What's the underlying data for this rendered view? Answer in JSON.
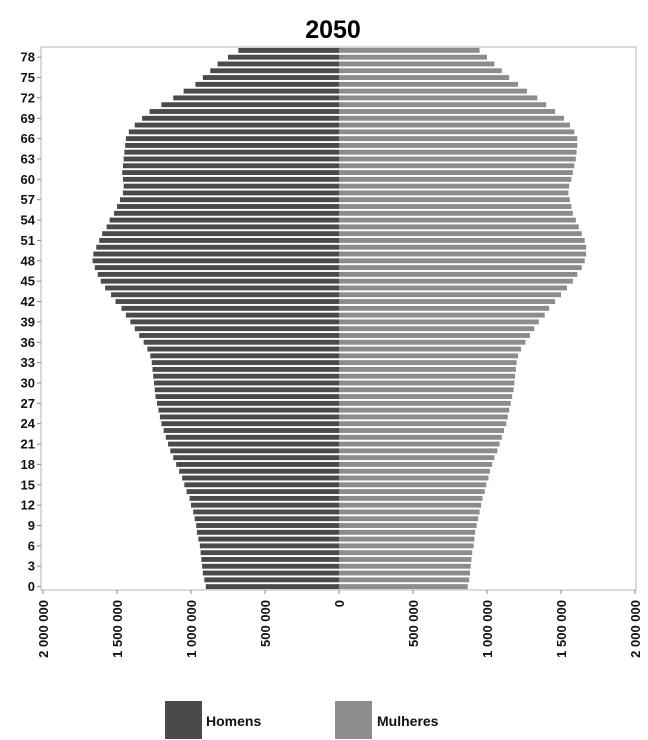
{
  "chart_data": {
    "type": "bar",
    "orientation": "horizontal",
    "title": "2050",
    "legend_position": "bottom",
    "grid": false,
    "xlim": [
      -2000000,
      2000000
    ],
    "x_ticks": [
      {
        "value": -2000000,
        "label": "2 000 000"
      },
      {
        "value": -1500000,
        "label": "1 500 000"
      },
      {
        "value": -1000000,
        "label": "1 000 000"
      },
      {
        "value": -500000,
        "label": "500 000"
      },
      {
        "value": 0,
        "label": "0"
      },
      {
        "value": 500000,
        "label": "500 000"
      },
      {
        "value": 1000000,
        "label": "1 000 000"
      },
      {
        "value": 1500000,
        "label": "1 500 000"
      },
      {
        "value": 2000000,
        "label": "2 000 000"
      }
    ],
    "y_ticks": [
      "0",
      "3",
      "6",
      "9",
      "12",
      "15",
      "18",
      "21",
      "24",
      "27",
      "30",
      "33",
      "36",
      "39",
      "42",
      "45",
      "48",
      "51",
      "54",
      "57",
      "60",
      "63",
      "66",
      "69",
      "72",
      "75",
      "78"
    ],
    "ages": [
      0,
      1,
      2,
      3,
      4,
      5,
      6,
      7,
      8,
      9,
      10,
      11,
      12,
      13,
      14,
      15,
      16,
      17,
      18,
      19,
      20,
      21,
      22,
      23,
      24,
      25,
      26,
      27,
      28,
      29,
      30,
      31,
      32,
      33,
      34,
      35,
      36,
      37,
      38,
      39,
      40,
      41,
      42,
      43,
      44,
      45,
      46,
      47,
      48,
      49,
      50,
      51,
      52,
      53,
      54,
      55,
      56,
      57,
      58,
      59,
      60,
      61,
      62,
      63,
      64,
      65,
      66,
      67,
      68,
      69,
      70,
      71,
      72,
      73,
      74,
      75,
      76,
      77,
      78,
      79
    ],
    "series": [
      {
        "name": "Homens",
        "color": "#4a4a4a",
        "values": [
          900000,
          910000,
          920000,
          925000,
          930000,
          935000,
          940000,
          950000,
          960000,
          965000,
          975000,
          985000,
          1000000,
          1010000,
          1030000,
          1045000,
          1060000,
          1080000,
          1100000,
          1120000,
          1140000,
          1155000,
          1170000,
          1185000,
          1200000,
          1210000,
          1220000,
          1230000,
          1240000,
          1245000,
          1250000,
          1255000,
          1260000,
          1265000,
          1275000,
          1295000,
          1320000,
          1350000,
          1380000,
          1410000,
          1440000,
          1470000,
          1510000,
          1540000,
          1580000,
          1610000,
          1630000,
          1650000,
          1665000,
          1660000,
          1640000,
          1620000,
          1600000,
          1570000,
          1550000,
          1520000,
          1500000,
          1480000,
          1460000,
          1455000,
          1460000,
          1465000,
          1460000,
          1455000,
          1450000,
          1445000,
          1440000,
          1420000,
          1380000,
          1330000,
          1280000,
          1200000,
          1120000,
          1050000,
          970000,
          920000,
          870000,
          820000,
          750000,
          680000
        ]
      },
      {
        "name": "Mulheres",
        "color": "#8c8c8c",
        "values": [
          870000,
          880000,
          885000,
          890000,
          895000,
          900000,
          910000,
          915000,
          920000,
          930000,
          940000,
          950000,
          960000,
          970000,
          985000,
          995000,
          1010000,
          1020000,
          1035000,
          1050000,
          1070000,
          1085000,
          1100000,
          1115000,
          1130000,
          1140000,
          1150000,
          1160000,
          1170000,
          1180000,
          1185000,
          1190000,
          1195000,
          1200000,
          1210000,
          1230000,
          1260000,
          1290000,
          1320000,
          1350000,
          1390000,
          1420000,
          1460000,
          1500000,
          1540000,
          1580000,
          1610000,
          1640000,
          1660000,
          1670000,
          1670000,
          1660000,
          1640000,
          1620000,
          1600000,
          1580000,
          1570000,
          1560000,
          1550000,
          1555000,
          1570000,
          1580000,
          1590000,
          1600000,
          1605000,
          1610000,
          1610000,
          1590000,
          1560000,
          1520000,
          1460000,
          1400000,
          1340000,
          1270000,
          1210000,
          1150000,
          1100000,
          1050000,
          1000000,
          950000
        ]
      }
    ]
  }
}
